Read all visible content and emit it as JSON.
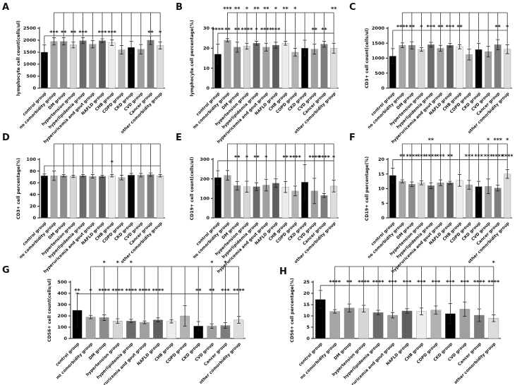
{
  "figure": {
    "background": "#ffffff",
    "text_color": "#111111",
    "axis_color": "#1a1a1a",
    "bracket_color": "#333333",
    "bar_palette": [
      "#000000",
      "#a6a6a6",
      "#8c8c8c",
      "#d6d6d6",
      "#6b6b6b",
      "#a0a0a0",
      "#5f5f5f",
      "#ececec",
      "#b2b2b2",
      "#000000",
      "#a0a0a0",
      "#7d7d7d",
      "#dcdcdc"
    ],
    "categories": [
      "control group",
      "no comorbidity group",
      "DM group",
      "hypertension group",
      "hyperlipidemia group",
      "hyperuricemia and gout group",
      "NAFLD group",
      "CHB group",
      "COPD group",
      "CKD group",
      "CVD group",
      "Cancer group",
      "other comorbidity group"
    ]
  },
  "chart_data": [
    {
      "label": "A",
      "type": "bar",
      "ylabel": "lymphocyte cell count(cells/ul)",
      "ylim": [
        0,
        2500
      ],
      "yticks": [
        0,
        500,
        1000,
        1500,
        2000,
        2500
      ],
      "values": [
        1500,
        1950,
        1950,
        1800,
        1980,
        1830,
        1980,
        1900,
        1600,
        1700,
        1620,
        2000,
        1780
      ],
      "errors": [
        300,
        150,
        150,
        120,
        120,
        150,
        80,
        120,
        180,
        250,
        200,
        180,
        150
      ],
      "sig_lower": {
        "y": 2180,
        "marks": [
          {
            "col": 1,
            "text": "***"
          },
          {
            "col": 2,
            "text": "**"
          },
          {
            "col": 3,
            "text": "**"
          },
          {
            "col": 4,
            "text": "***"
          },
          {
            "col": 6,
            "text": "***"
          },
          {
            "col": 7,
            "text": "***"
          },
          {
            "col": 11,
            "text": "**"
          },
          {
            "col": 12,
            "text": "*"
          }
        ]
      },
      "sig_upper": {
        "marks": []
      }
    },
    {
      "label": "B",
      "type": "bar",
      "ylabel": "lymphocyte cell percentage(%)",
      "ylim": [
        0,
        30
      ],
      "yticks": [
        0,
        10,
        20,
        30
      ],
      "values": [
        17,
        24,
        20.5,
        21,
        22.5,
        20.5,
        21.5,
        22.5,
        18,
        20,
        19.5,
        22,
        20
      ],
      "errors": [
        5,
        0.8,
        2.5,
        1.5,
        1,
        2,
        1.5,
        1,
        2,
        4,
        2.5,
        1.5,
        2.5
      ],
      "sig_lower": {
        "y": 27.5,
        "marks": [
          {
            "col": 0,
            "text": "****"
          },
          {
            "col": 1,
            "text": "**"
          },
          {
            "col": 2,
            "text": "**"
          },
          {
            "col": 3,
            "text": "****"
          },
          {
            "col": 4,
            "text": "*"
          },
          {
            "col": 5,
            "text": "****"
          },
          {
            "col": 6,
            "text": "***"
          },
          {
            "col": 10,
            "text": "**"
          },
          {
            "col": 11,
            "text": "**"
          }
        ]
      },
      "sig_upper": {
        "marks": [
          {
            "col": 1,
            "text": "***"
          },
          {
            "col": 2,
            "text": "**"
          },
          {
            "col": 3,
            "text": "*"
          },
          {
            "col": 4,
            "text": "**"
          },
          {
            "col": 5,
            "text": "**"
          },
          {
            "col": 6,
            "text": "*"
          },
          {
            "col": 7,
            "text": "**"
          },
          {
            "col": 8,
            "text": "*"
          },
          {
            "col": 12,
            "text": "**"
          }
        ]
      }
    },
    {
      "label": "C",
      "type": "bar",
      "ylabel": "CD3+ cell count(cells/ul)",
      "ylim": [
        0,
        2000
      ],
      "yticks": [
        0,
        500,
        1000,
        1500,
        2000
      ],
      "values": [
        1070,
        1430,
        1430,
        1290,
        1450,
        1330,
        1430,
        1380,
        1120,
        1290,
        1220,
        1450,
        1300
      ],
      "errors": [
        250,
        80,
        120,
        60,
        80,
        100,
        60,
        70,
        180,
        200,
        180,
        170,
        150
      ],
      "sig_lower": {
        "y": 1930,
        "marks": [
          {
            "col": 1,
            "text": "****"
          },
          {
            "col": 2,
            "text": "**"
          },
          {
            "col": 3,
            "text": "*"
          },
          {
            "col": 4,
            "text": "***"
          },
          {
            "col": 5,
            "text": "**"
          },
          {
            "col": 6,
            "text": "***"
          },
          {
            "col": 7,
            "text": "**"
          },
          {
            "col": 11,
            "text": "**"
          },
          {
            "col": 12,
            "text": "*"
          }
        ]
      },
      "sig_upper": {
        "marks": []
      }
    },
    {
      "label": "D",
      "type": "bar",
      "ylabel": "CD3+ cell percentage(%)",
      "ylim": [
        0,
        100
      ],
      "yticks": [
        0,
        20,
        40,
        60,
        80,
        100
      ],
      "values": [
        72,
        72,
        72,
        71,
        72,
        71,
        71,
        72,
        69,
        73,
        73,
        74,
        72
      ],
      "errors": [
        3,
        8,
        2,
        2,
        2,
        3,
        2,
        2,
        4,
        3,
        3,
        3,
        2
      ],
      "sig_lower": {
        "y": 89,
        "marks": [
          {
            "col": 7,
            "text": "*"
          }
        ]
      },
      "sig_upper": {
        "marks": []
      }
    },
    {
      "label": "E",
      "type": "bar",
      "ylabel": "CD19+ cell count(cells/ul)",
      "ylim": [
        0,
        300
      ],
      "yticks": [
        0,
        100,
        200,
        300
      ],
      "values": [
        207,
        218,
        165,
        160,
        160,
        168,
        178,
        158,
        138,
        183,
        138,
        115,
        163
      ],
      "errors": [
        35,
        25,
        22,
        28,
        20,
        30,
        22,
        28,
        25,
        90,
        65,
        10,
        30
      ],
      "sig_lower": {
        "y": 293,
        "marks": [
          {
            "col": 2,
            "text": "**"
          },
          {
            "col": 3,
            "text": "*"
          },
          {
            "col": 4,
            "text": "**"
          },
          {
            "col": 5,
            "text": "*"
          },
          {
            "col": 7,
            "text": "**"
          },
          {
            "col": 8,
            "text": "****"
          },
          {
            "col": 10,
            "text": "****"
          },
          {
            "col": 11,
            "text": "****"
          },
          {
            "col": 12,
            "text": "*"
          }
        ]
      },
      "sig_upper": {
        "marks": []
      }
    },
    {
      "label": "F",
      "type": "bar",
      "ylabel": "CD19+ cell percentage(%)",
      "ylim": [
        0,
        20
      ],
      "yticks": [
        0,
        5,
        10,
        15,
        20
      ],
      "values": [
        14.5,
        12.5,
        11.5,
        12,
        11,
        12,
        12,
        12.8,
        11.3,
        10.7,
        10.8,
        10.2,
        15
      ],
      "errors": [
        2.5,
        0.5,
        0.8,
        0.7,
        1,
        1,
        0.5,
        2,
        1.5,
        1.8,
        2.5,
        1,
        1.5
      ],
      "sig_lower": {
        "y": 19.9,
        "marks": [
          {
            "col": 1,
            "text": "**"
          },
          {
            "col": 2,
            "text": "****"
          },
          {
            "col": 3,
            "text": "***"
          },
          {
            "col": 4,
            "text": "****"
          },
          {
            "col": 5,
            "text": "***"
          },
          {
            "col": 6,
            "text": "**"
          },
          {
            "col": 8,
            "text": "***"
          },
          {
            "col": 9,
            "text": "***"
          },
          {
            "col": 10,
            "text": "***"
          },
          {
            "col": 11,
            "text": "****"
          },
          {
            "col": 12,
            "text": "****"
          }
        ]
      },
      "sig_upper": {
        "marks": [
          {
            "col": 4,
            "text": "**"
          },
          {
            "col": 10,
            "text": "*"
          },
          {
            "col": 11,
            "text": "***"
          },
          {
            "col": 12,
            "text": "*"
          }
        ]
      }
    },
    {
      "label": "G",
      "type": "bar",
      "ylabel": "CD56+ cell count(cells/ul)",
      "ylim": [
        0,
        500
      ],
      "yticks": [
        0,
        100,
        200,
        300,
        400,
        500
      ],
      "values": [
        250,
        190,
        185,
        155,
        155,
        143,
        165,
        152,
        200,
        110,
        110,
        115,
        165
      ],
      "errors": [
        150,
        15,
        25,
        20,
        15,
        12,
        18,
        15,
        90,
        40,
        20,
        25,
        30
      ],
      "sig_lower": {
        "y": 395,
        "marks": [
          {
            "col": 0,
            "text": "**"
          },
          {
            "col": 1,
            "text": "*"
          },
          {
            "col": 2,
            "text": "****"
          },
          {
            "col": 3,
            "text": "****"
          },
          {
            "col": 4,
            "text": "****"
          },
          {
            "col": 5,
            "text": "****"
          },
          {
            "col": 6,
            "text": "****"
          },
          {
            "col": 9,
            "text": "**"
          },
          {
            "col": 10,
            "text": "**"
          },
          {
            "col": 11,
            "text": "***"
          },
          {
            "col": 12,
            "text": "****"
          }
        ]
      },
      "sig_upper": {
        "marks": [
          {
            "col": 2,
            "text": "*"
          },
          {
            "col": 3,
            "text": "*"
          },
          {
            "col": 4,
            "text": "*"
          },
          {
            "col": 10,
            "text": "*"
          },
          {
            "col": 11,
            "text": "*"
          }
        ]
      }
    },
    {
      "label": "H",
      "type": "bar",
      "ylabel": "CD56+ cell percentage(%)",
      "ylim": [
        0,
        25
      ],
      "yticks": [
        0,
        5,
        10,
        15,
        20,
        25
      ],
      "values": [
        17.3,
        12,
        13.5,
        13.2,
        11.5,
        10.3,
        12.2,
        12,
        12.6,
        11,
        13,
        10.3,
        9
      ],
      "errors": [
        4,
        0.8,
        1.8,
        1.5,
        1,
        1.2,
        1,
        1.5,
        1.8,
        4.5,
        3.2,
        2.8,
        1.5
      ],
      "sig_lower": {
        "y": 23.5,
        "marks": [
          {
            "col": 1,
            "text": "****"
          },
          {
            "col": 2,
            "text": "**"
          },
          {
            "col": 3,
            "text": "****"
          },
          {
            "col": 4,
            "text": "****"
          },
          {
            "col": 5,
            "text": "***"
          },
          {
            "col": 6,
            "text": "***"
          },
          {
            "col": 7,
            "text": "***"
          },
          {
            "col": 8,
            "text": "***"
          },
          {
            "col": 9,
            "text": "***"
          },
          {
            "col": 10,
            "text": "***"
          },
          {
            "col": 11,
            "text": "****"
          },
          {
            "col": 12,
            "text": "****"
          }
        ]
      },
      "sig_upper": {
        "marks": [
          {
            "col": 12,
            "text": "*"
          }
        ]
      }
    }
  ]
}
